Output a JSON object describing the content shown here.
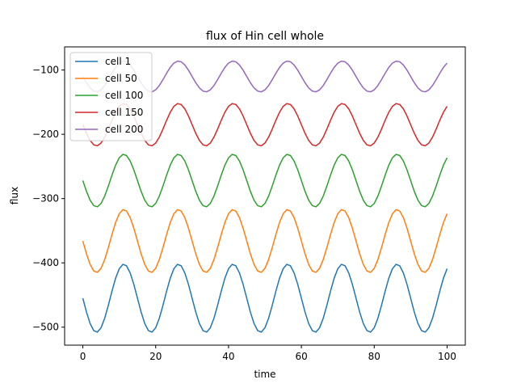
{
  "chart_data": {
    "type": "line",
    "title": "flux of Hin cell whole",
    "xlabel": "time",
    "ylabel": "flux",
    "xlim": [
      -5,
      105
    ],
    "ylim": [
      -528,
      -64
    ],
    "xticks": [
      0,
      20,
      40,
      60,
      80,
      100
    ],
    "yticks": [
      -500,
      -400,
      -300,
      -200,
      -100
    ],
    "grid": false,
    "legend": "top-left",
    "series": [
      {
        "name": "cell 1",
        "color": "#1f77b4",
        "mean": -455,
        "amplitude": 53,
        "period": 15,
        "phase_start": 0
      },
      {
        "name": "cell 50",
        "color": "#ff7f0e",
        "mean": -366,
        "amplitude": 49,
        "period": 15,
        "phase_start": 0
      },
      {
        "name": "cell 100",
        "color": "#2ca02c",
        "mean": -272,
        "amplitude": 41,
        "period": 15,
        "phase_start": 0
      },
      {
        "name": "cell 150",
        "color": "#d62728",
        "mean": -185,
        "amplitude": 33,
        "period": 15,
        "phase_start": 0
      },
      {
        "name": "cell 200",
        "color": "#9467bd",
        "mean": -110,
        "amplitude": 24,
        "period": 15,
        "phase_start": 0
      }
    ]
  }
}
